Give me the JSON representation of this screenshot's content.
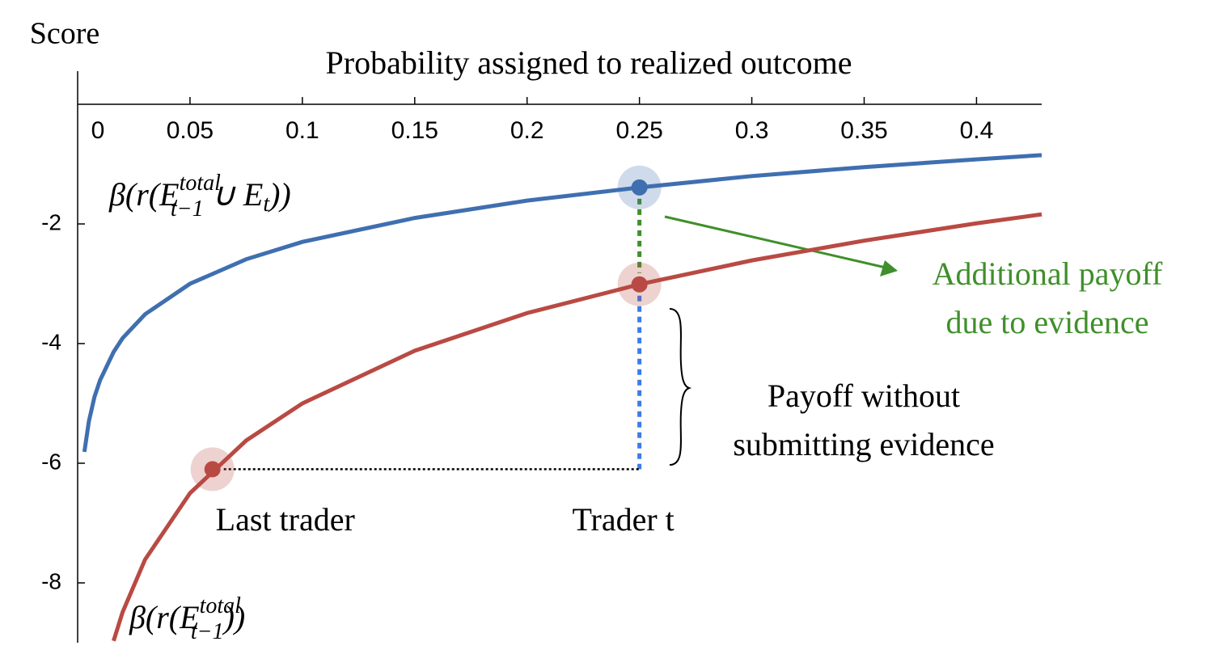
{
  "chart_data": {
    "type": "line",
    "x_label": "Probability assigned to realized outcome",
    "y_label": "Score",
    "xlim": [
      0,
      0.429
    ],
    "ylim": [
      -9,
      0
    ],
    "xticks": [
      0,
      0.05,
      0.1,
      0.15,
      0.2,
      0.25,
      0.3,
      0.35,
      0.4
    ],
    "yticks": [
      -2,
      -4,
      -6,
      -8
    ],
    "x": [
      0.003,
      0.005,
      0.0075,
      0.01,
      0.016,
      0.02,
      0.03,
      0.05,
      0.075,
      0.1,
      0.15,
      0.2,
      0.25,
      0.3,
      0.35,
      0.4,
      0.429
    ],
    "series": [
      {
        "color": "#3f6fb0",
        "values": [
          -5.81,
          -5.3,
          -4.89,
          -4.61,
          -4.14,
          -3.91,
          -3.51,
          -3.0,
          -2.59,
          -2.3,
          -1.9,
          -1.61,
          -1.39,
          -1.2,
          -1.05,
          -0.92,
          -0.85
        ],
        "label_parts": [
          "β(r(E",
          "total",
          "t−1",
          " ∪ E",
          "t",
          "))"
        ]
      },
      {
        "color": "#b94a43",
        "values": [
          null,
          null,
          null,
          null,
          -8.97,
          -8.49,
          -7.61,
          -6.5,
          -5.62,
          -5.0,
          -4.12,
          -3.49,
          -3.01,
          -2.61,
          -2.28,
          -1.99,
          -1.84
        ],
        "label_parts": [
          "β(r(E",
          "total",
          "t−1",
          "))"
        ]
      }
    ],
    "markers": [
      {
        "x": 0.25,
        "y": -1.39,
        "color": "#3f6fb0"
      },
      {
        "x": 0.25,
        "y": -3.01,
        "color": "#b94a43",
        "label": "Trader t"
      },
      {
        "x": 0.06,
        "y": -6.1,
        "color": "#b94a43",
        "label": "Last trader"
      }
    ],
    "annotations": [
      {
        "lines": [
          "Additional payoff",
          "due to evidence"
        ],
        "color": "#3f8f2a"
      },
      {
        "lines": [
          "Payoff without",
          "submitting evidence"
        ],
        "color": "#000000"
      }
    ]
  }
}
